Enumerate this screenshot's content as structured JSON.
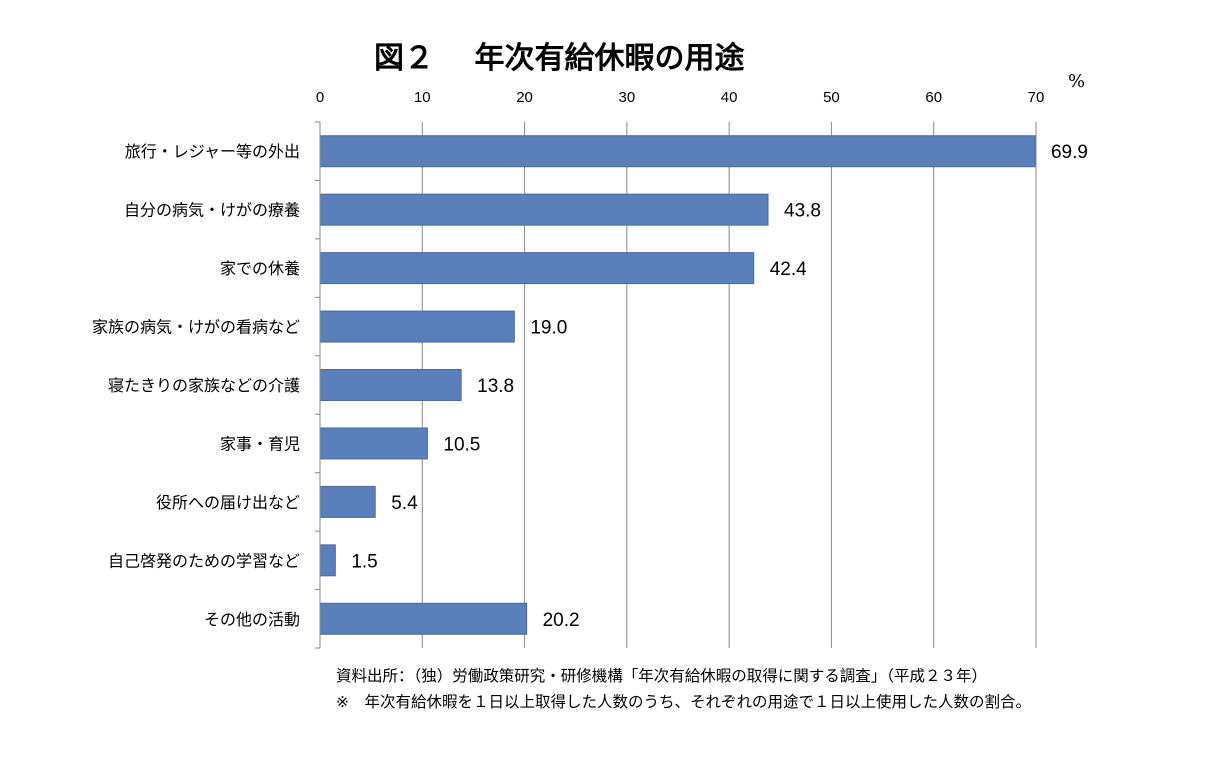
{
  "chart_data": {
    "type": "bar",
    "orientation": "horizontal",
    "title": "図２　 年次有給休暇の用途",
    "unit": "%",
    "xlim": [
      0,
      70
    ],
    "ticks": [
      "0",
      "10",
      "20",
      "30",
      "40",
      "50",
      "60",
      "70"
    ],
    "grid": true,
    "bar_color": "#5B7FBA",
    "categories": [
      "旅行・レジャー等の外出",
      "自分の病気・けがの療養",
      "家での休養",
      "家族の病気・けがの看病など",
      "寝たきりの家族などの介護",
      "家事・育児",
      "役所への届け出など",
      "自己啓発のための学習など",
      "その他の活動"
    ],
    "values": [
      69.9,
      43.8,
      42.4,
      19.0,
      13.8,
      10.5,
      5.4,
      1.5,
      20.2
    ],
    "value_labels": [
      "69.9",
      "43.8",
      "42.4",
      "19.0",
      "13.8",
      "10.5",
      "5.4",
      "1.5",
      "20.2"
    ]
  },
  "notes": {
    "source": "資料出所：（独）労働政策研究・研修機構「年次有給休暇の取得に関する調査」（平成２３年）",
    "footnote": "※　年次有給休暇を１日以上取得した人数のうち、それぞれの用途で１日以上使用した人数の割合。"
  }
}
